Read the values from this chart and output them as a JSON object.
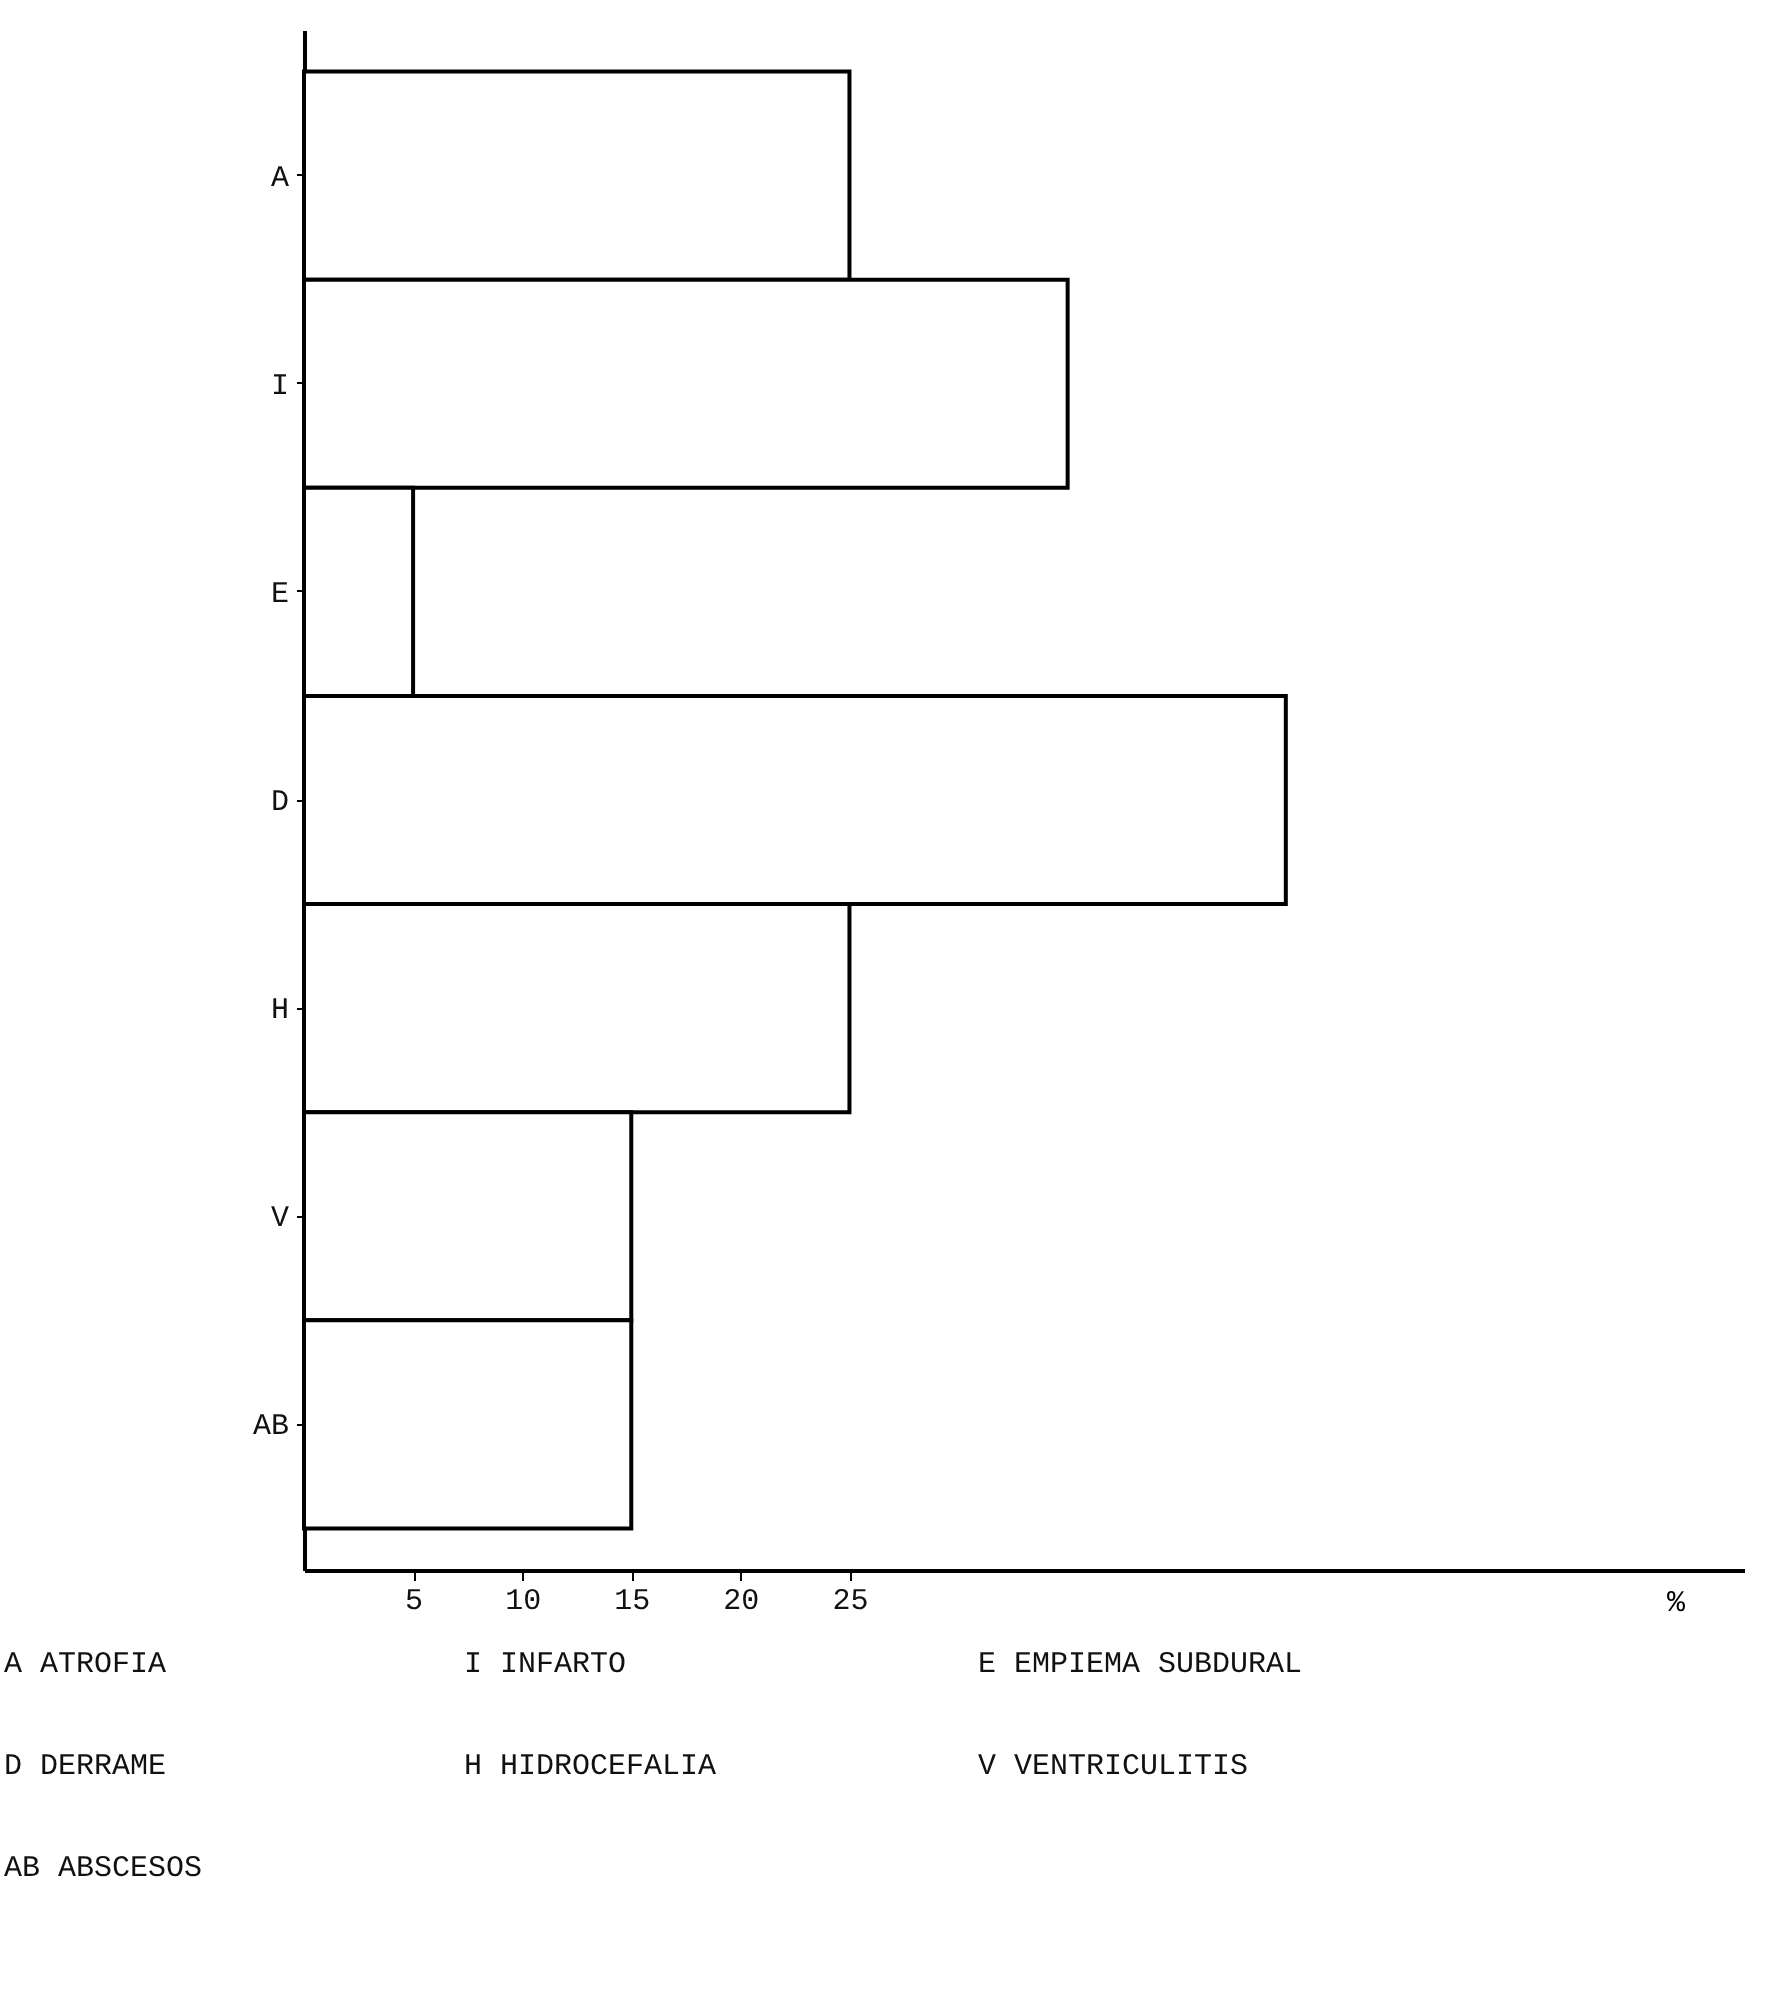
{
  "chart_data": {
    "type": "bar",
    "orientation": "horizontal",
    "xlabel": "%",
    "categories": [
      "A",
      "I",
      "E",
      "D",
      "H",
      "V",
      "AB"
    ],
    "values": [
      25,
      35,
      5,
      45,
      25,
      15,
      15
    ],
    "color": "#ffffff",
    "xlim": [
      0,
      66
    ],
    "xticks": [
      5,
      10,
      15,
      20,
      25
    ],
    "grid": false,
    "annotations": [
      "A ATROFIA",
      "I INFARTO",
      "E EMPIEMA SUBDURAL",
      "D DERRAME",
      "H HIDROCEFALIA",
      "V VENTRICULITIS",
      "AB ABSCESOS"
    ]
  }
}
